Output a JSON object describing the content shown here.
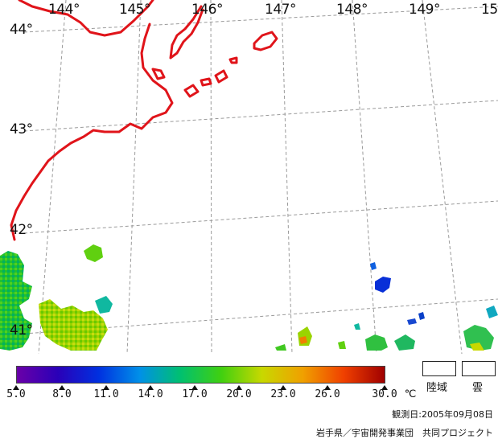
{
  "map": {
    "lon_labels": [
      "144°",
      "145°",
      "146°",
      "147°",
      "148°",
      "149°",
      "15"
    ],
    "lat_labels": [
      "44°",
      "43°",
      "42°",
      "41°"
    ],
    "coast_color": "#e0141a",
    "grid_color": "#9a9a9a"
  },
  "colorbar": {
    "ticks": [
      "5.0",
      "8.0",
      "11.0",
      "14.0",
      "17.0",
      "20.0",
      "23.0",
      "26.0",
      "30.0"
    ],
    "unit": "℃",
    "colors": [
      "#6a00a8",
      "#2a00b8",
      "#0030e0",
      "#0090e8",
      "#00c070",
      "#40d010",
      "#c8d800",
      "#f0a000",
      "#f04000",
      "#a00000"
    ]
  },
  "legend": {
    "land_label": "陸域",
    "cloud_label": "雲"
  },
  "footer": {
    "observation": "観測日:2005年09月08日",
    "credit": "岩手県／宇宙開発事業団　共同プロジェクト"
  }
}
